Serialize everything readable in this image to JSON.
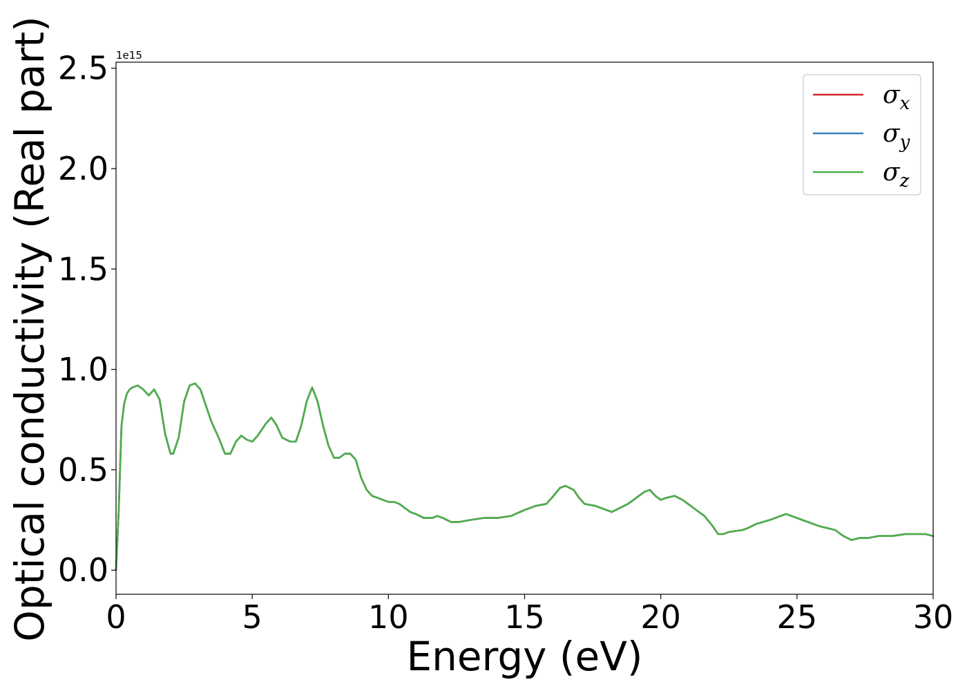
{
  "chart_data": {
    "type": "line",
    "title": "",
    "xlabel": "Energy (eV)",
    "ylabel": "Optical conductivity (Real part)",
    "y_offset_label": "1e15",
    "xlim": [
      0,
      30
    ],
    "ylim": [
      -0.12,
      2.53
    ],
    "xticks": [
      0,
      5,
      10,
      15,
      20,
      25,
      30
    ],
    "xtick_labels": [
      "0",
      "5",
      "10",
      "15",
      "20",
      "25",
      "30"
    ],
    "yticks": [
      0.0,
      0.5,
      1.0,
      1.5,
      2.0,
      2.5
    ],
    "ytick_labels": [
      "0.0",
      "0.5",
      "1.0",
      "1.5",
      "2.0",
      "2.5"
    ],
    "grid": false,
    "legend_position": "top-right",
    "series": [
      {
        "name": "σx",
        "symbol": "σ",
        "subscript": "x",
        "color": "#d62728",
        "x": [
          0,
          0.1,
          0.2,
          0.3,
          0.4,
          0.5,
          0.6,
          0.8,
          1.0,
          1.2,
          1.4,
          1.6,
          1.8,
          2.0,
          2.1,
          2.3,
          2.5,
          2.7,
          2.9,
          3.1,
          3.3,
          3.5,
          3.8,
          4.0,
          4.2,
          4.4,
          4.6,
          4.8,
          5.0,
          5.2,
          5.5,
          5.7,
          5.9,
          6.1,
          6.4,
          6.6,
          6.8,
          7.0,
          7.2,
          7.4,
          7.6,
          7.8,
          8.0,
          8.2,
          8.4,
          8.6,
          8.8,
          9.0,
          9.2,
          9.4,
          9.6,
          9.8,
          10.0,
          10.2,
          10.4,
          10.6,
          10.8,
          11.0,
          11.3,
          11.6,
          11.8,
          12.0,
          12.3,
          12.6,
          13.0,
          13.5,
          14.0,
          14.5,
          15.0,
          15.4,
          15.8,
          16.0,
          16.3,
          16.5,
          16.8,
          17.0,
          17.2,
          17.6,
          18.0,
          18.2,
          18.5,
          18.8,
          19.0,
          19.2,
          19.4,
          19.6,
          19.8,
          20.0,
          20.2,
          20.5,
          20.8,
          21.0,
          21.3,
          21.6,
          21.9,
          22.1,
          22.3,
          22.5,
          23.0,
          23.2,
          23.5,
          24.0,
          24.4,
          24.6,
          25.0,
          25.4,
          25.8,
          26.1,
          26.4,
          26.7,
          27.0,
          27.3,
          27.6,
          28.0,
          28.5,
          29.0,
          29.4,
          29.7,
          30.0
        ],
        "y": [
          0.0,
          0.3,
          0.72,
          0.83,
          0.88,
          0.9,
          0.91,
          0.92,
          0.9,
          0.87,
          0.9,
          0.85,
          0.68,
          0.58,
          0.58,
          0.66,
          0.84,
          0.92,
          0.93,
          0.9,
          0.82,
          0.74,
          0.65,
          0.58,
          0.58,
          0.64,
          0.67,
          0.65,
          0.64,
          0.67,
          0.73,
          0.76,
          0.72,
          0.66,
          0.64,
          0.64,
          0.72,
          0.84,
          0.91,
          0.84,
          0.72,
          0.62,
          0.56,
          0.56,
          0.58,
          0.58,
          0.55,
          0.46,
          0.4,
          0.37,
          0.36,
          0.35,
          0.34,
          0.34,
          0.33,
          0.31,
          0.29,
          0.28,
          0.26,
          0.26,
          0.27,
          0.26,
          0.24,
          0.24,
          0.25,
          0.26,
          0.26,
          0.27,
          0.3,
          0.32,
          0.33,
          0.36,
          0.41,
          0.42,
          0.4,
          0.36,
          0.33,
          0.32,
          0.3,
          0.29,
          0.31,
          0.33,
          0.35,
          0.37,
          0.39,
          0.4,
          0.37,
          0.35,
          0.36,
          0.37,
          0.35,
          0.33,
          0.3,
          0.27,
          0.22,
          0.18,
          0.18,
          0.19,
          0.2,
          0.21,
          0.23,
          0.25,
          0.27,
          0.28,
          0.26,
          0.24,
          0.22,
          0.21,
          0.2,
          0.17,
          0.15,
          0.16,
          0.16,
          0.17,
          0.17,
          0.18,
          0.18,
          0.18,
          0.17
        ]
      },
      {
        "name": "σy",
        "symbol": "σ",
        "subscript": "y",
        "color": "#377eb8",
        "x": [
          0,
          0.1,
          0.2,
          0.3,
          0.4,
          0.5,
          0.6,
          0.8,
          1.0,
          1.2,
          1.4,
          1.6,
          1.8,
          2.0,
          2.1,
          2.3,
          2.5,
          2.7,
          2.9,
          3.1,
          3.3,
          3.5,
          3.8,
          4.0,
          4.2,
          4.4,
          4.6,
          4.8,
          5.0,
          5.2,
          5.5,
          5.7,
          5.9,
          6.1,
          6.4,
          6.6,
          6.8,
          7.0,
          7.2,
          7.4,
          7.6,
          7.8,
          8.0,
          8.2,
          8.4,
          8.6,
          8.8,
          9.0,
          9.2,
          9.4,
          9.6,
          9.8,
          10.0,
          10.2,
          10.4,
          10.6,
          10.8,
          11.0,
          11.3,
          11.6,
          11.8,
          12.0,
          12.3,
          12.6,
          13.0,
          13.5,
          14.0,
          14.5,
          15.0,
          15.4,
          15.8,
          16.0,
          16.3,
          16.5,
          16.8,
          17.0,
          17.2,
          17.6,
          18.0,
          18.2,
          18.5,
          18.8,
          19.0,
          19.2,
          19.4,
          19.6,
          19.8,
          20.0,
          20.2,
          20.5,
          20.8,
          21.0,
          21.3,
          21.6,
          21.9,
          22.1,
          22.3,
          22.5,
          23.0,
          23.2,
          23.5,
          24.0,
          24.4,
          24.6,
          25.0,
          25.4,
          25.8,
          26.1,
          26.4,
          26.7,
          27.0,
          27.3,
          27.6,
          28.0,
          28.5,
          29.0,
          29.4,
          29.7,
          30.0
        ],
        "y": [
          0.0,
          0.3,
          0.72,
          0.83,
          0.88,
          0.9,
          0.91,
          0.92,
          0.9,
          0.87,
          0.9,
          0.85,
          0.68,
          0.58,
          0.58,
          0.66,
          0.84,
          0.92,
          0.93,
          0.9,
          0.82,
          0.74,
          0.65,
          0.58,
          0.58,
          0.64,
          0.67,
          0.65,
          0.64,
          0.67,
          0.73,
          0.76,
          0.72,
          0.66,
          0.64,
          0.64,
          0.72,
          0.84,
          0.91,
          0.84,
          0.72,
          0.62,
          0.56,
          0.56,
          0.58,
          0.58,
          0.55,
          0.46,
          0.4,
          0.37,
          0.36,
          0.35,
          0.34,
          0.34,
          0.33,
          0.31,
          0.29,
          0.28,
          0.26,
          0.26,
          0.27,
          0.26,
          0.24,
          0.24,
          0.25,
          0.26,
          0.26,
          0.27,
          0.3,
          0.32,
          0.33,
          0.36,
          0.41,
          0.42,
          0.4,
          0.36,
          0.33,
          0.32,
          0.3,
          0.29,
          0.31,
          0.33,
          0.35,
          0.37,
          0.39,
          0.4,
          0.37,
          0.35,
          0.36,
          0.37,
          0.35,
          0.33,
          0.3,
          0.27,
          0.22,
          0.18,
          0.18,
          0.19,
          0.2,
          0.21,
          0.23,
          0.25,
          0.27,
          0.28,
          0.26,
          0.24,
          0.22,
          0.21,
          0.2,
          0.17,
          0.15,
          0.16,
          0.16,
          0.17,
          0.17,
          0.18,
          0.18,
          0.18,
          0.17
        ]
      },
      {
        "name": "σz",
        "symbol": "σ",
        "subscript": "z",
        "color": "#4daf4a",
        "x": [
          0,
          0.1,
          0.2,
          0.3,
          0.4,
          0.5,
          0.6,
          0.8,
          1.0,
          1.2,
          1.4,
          1.6,
          1.8,
          2.0,
          2.1,
          2.3,
          2.5,
          2.7,
          2.9,
          3.1,
          3.3,
          3.5,
          3.8,
          4.0,
          4.2,
          4.4,
          4.6,
          4.8,
          5.0,
          5.2,
          5.5,
          5.7,
          5.9,
          6.1,
          6.4,
          6.6,
          6.8,
          7.0,
          7.2,
          7.4,
          7.6,
          7.8,
          8.0,
          8.2,
          8.4,
          8.6,
          8.8,
          9.0,
          9.2,
          9.4,
          9.6,
          9.8,
          10.0,
          10.2,
          10.4,
          10.6,
          10.8,
          11.0,
          11.3,
          11.6,
          11.8,
          12.0,
          12.3,
          12.6,
          13.0,
          13.5,
          14.0,
          14.5,
          15.0,
          15.4,
          15.8,
          16.0,
          16.3,
          16.5,
          16.8,
          17.0,
          17.2,
          17.6,
          18.0,
          18.2,
          18.5,
          18.8,
          19.0,
          19.2,
          19.4,
          19.6,
          19.8,
          20.0,
          20.2,
          20.5,
          20.8,
          21.0,
          21.3,
          21.6,
          21.9,
          22.1,
          22.3,
          22.5,
          23.0,
          23.2,
          23.5,
          24.0,
          24.4,
          24.6,
          25.0,
          25.4,
          25.8,
          26.1,
          26.4,
          26.7,
          27.0,
          27.3,
          27.6,
          28.0,
          28.5,
          29.0,
          29.4,
          29.7,
          30.0
        ],
        "y": [
          0.0,
          0.3,
          0.72,
          0.83,
          0.88,
          0.9,
          0.91,
          0.92,
          0.9,
          0.87,
          0.9,
          0.85,
          0.68,
          0.58,
          0.58,
          0.66,
          0.84,
          0.92,
          0.93,
          0.9,
          0.82,
          0.74,
          0.65,
          0.58,
          0.58,
          0.64,
          0.67,
          0.65,
          0.64,
          0.67,
          0.73,
          0.76,
          0.72,
          0.66,
          0.64,
          0.64,
          0.72,
          0.84,
          0.91,
          0.84,
          0.72,
          0.62,
          0.56,
          0.56,
          0.58,
          0.58,
          0.55,
          0.46,
          0.4,
          0.37,
          0.36,
          0.35,
          0.34,
          0.34,
          0.33,
          0.31,
          0.29,
          0.28,
          0.26,
          0.26,
          0.27,
          0.26,
          0.24,
          0.24,
          0.25,
          0.26,
          0.26,
          0.27,
          0.3,
          0.32,
          0.33,
          0.36,
          0.41,
          0.42,
          0.4,
          0.36,
          0.33,
          0.32,
          0.3,
          0.29,
          0.31,
          0.33,
          0.35,
          0.37,
          0.39,
          0.4,
          0.37,
          0.35,
          0.36,
          0.37,
          0.35,
          0.33,
          0.3,
          0.27,
          0.22,
          0.18,
          0.18,
          0.19,
          0.2,
          0.21,
          0.23,
          0.25,
          0.27,
          0.28,
          0.26,
          0.24,
          0.22,
          0.21,
          0.2,
          0.17,
          0.15,
          0.16,
          0.16,
          0.17,
          0.17,
          0.18,
          0.18,
          0.18,
          0.17
        ]
      }
    ]
  }
}
